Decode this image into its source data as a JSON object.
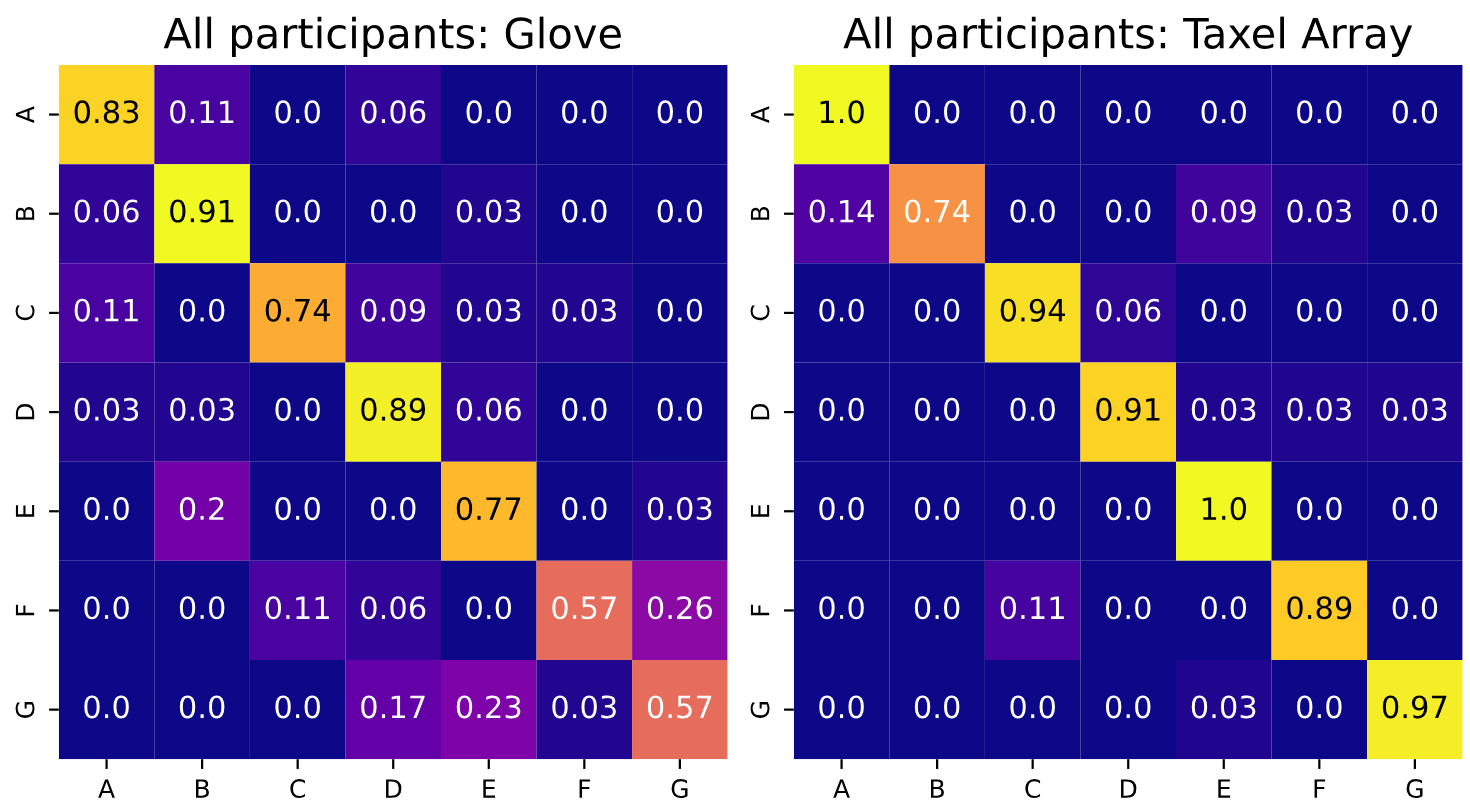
{
  "chart_data": [
    {
      "type": "heatmap",
      "title": "All participants: Glove",
      "categories": [
        "A",
        "B",
        "C",
        "D",
        "E",
        "F",
        "G"
      ],
      "y_categories": [
        "A",
        "B",
        "C",
        "D",
        "E",
        "F",
        "G"
      ],
      "cells": [
        [
          0.83,
          0.11,
          0.0,
          0.06,
          0.0,
          0.0,
          0.0
        ],
        [
          0.06,
          0.91,
          0.0,
          0.0,
          0.03,
          0.0,
          0.0
        ],
        [
          0.11,
          0.0,
          0.74,
          0.09,
          0.03,
          0.03,
          0.0
        ],
        [
          0.03,
          0.03,
          0.0,
          0.89,
          0.06,
          0.0,
          0.0
        ],
        [
          0.0,
          0.2,
          0.0,
          0.0,
          0.77,
          0.0,
          0.03
        ],
        [
          0.0,
          0.0,
          0.11,
          0.06,
          0.0,
          0.57,
          0.26
        ],
        [
          0.0,
          0.0,
          0.0,
          0.17,
          0.23,
          0.03,
          0.57
        ]
      ],
      "cell_labels": [
        [
          "0.83",
          "0.11",
          "0.0",
          "0.06",
          "0.0",
          "0.0",
          "0.0"
        ],
        [
          "0.06",
          "0.91",
          "0.0",
          "0.0",
          "0.03",
          "0.0",
          "0.0"
        ],
        [
          "0.11",
          "0.0",
          "0.74",
          "0.09",
          "0.03",
          "0.03",
          "0.0"
        ],
        [
          "0.03",
          "0.03",
          "0.0",
          "0.89",
          "0.06",
          "0.0",
          "0.0"
        ],
        [
          "0.0",
          "0.2",
          "0.0",
          "0.0",
          "0.77",
          "0.0",
          "0.03"
        ],
        [
          "0.0",
          "0.0",
          "0.11",
          "0.06",
          "0.0",
          "0.57",
          "0.26"
        ],
        [
          "0.0",
          "0.0",
          "0.0",
          "0.17",
          "0.23",
          "0.03",
          "0.57"
        ]
      ]
    },
    {
      "type": "heatmap",
      "title": "All participants: Taxel Array",
      "categories": [
        "A",
        "B",
        "C",
        "D",
        "E",
        "F",
        "G"
      ],
      "y_categories": [
        "A",
        "B",
        "C",
        "D",
        "E",
        "F",
        "G"
      ],
      "cells": [
        [
          1.0,
          0.0,
          0.0,
          0.0,
          0.0,
          0.0,
          0.0
        ],
        [
          0.14,
          0.74,
          0.0,
          0.0,
          0.09,
          0.03,
          0.0
        ],
        [
          0.0,
          0.0,
          0.94,
          0.06,
          0.0,
          0.0,
          0.0
        ],
        [
          0.0,
          0.0,
          0.0,
          0.91,
          0.03,
          0.03,
          0.03
        ],
        [
          0.0,
          0.0,
          0.0,
          0.0,
          1.0,
          0.0,
          0.0
        ],
        [
          0.0,
          0.0,
          0.11,
          0.0,
          0.0,
          0.89,
          0.0
        ],
        [
          0.0,
          0.0,
          0.0,
          0.0,
          0.03,
          0.0,
          0.97
        ]
      ],
      "cell_labels": [
        [
          "1.0",
          "0.0",
          "0.0",
          "0.0",
          "0.0",
          "0.0",
          "0.0"
        ],
        [
          "0.14",
          "0.74",
          "0.0",
          "0.0",
          "0.09",
          "0.03",
          "0.0"
        ],
        [
          "0.0",
          "0.0",
          "0.94",
          "0.06",
          "0.0",
          "0.0",
          "0.0"
        ],
        [
          "0.0",
          "0.0",
          "0.0",
          "0.91",
          "0.03",
          "0.03",
          "0.03"
        ],
        [
          "0.0",
          "0.0",
          "0.0",
          "0.0",
          "1.0",
          "0.0",
          "0.0"
        ],
        [
          "0.0",
          "0.0",
          "0.11",
          "0.0",
          "0.0",
          "0.89",
          "0.0"
        ],
        [
          "0.0",
          "0.0",
          "0.0",
          "0.0",
          "0.03",
          "0.0",
          "0.97"
        ]
      ]
    }
  ]
}
